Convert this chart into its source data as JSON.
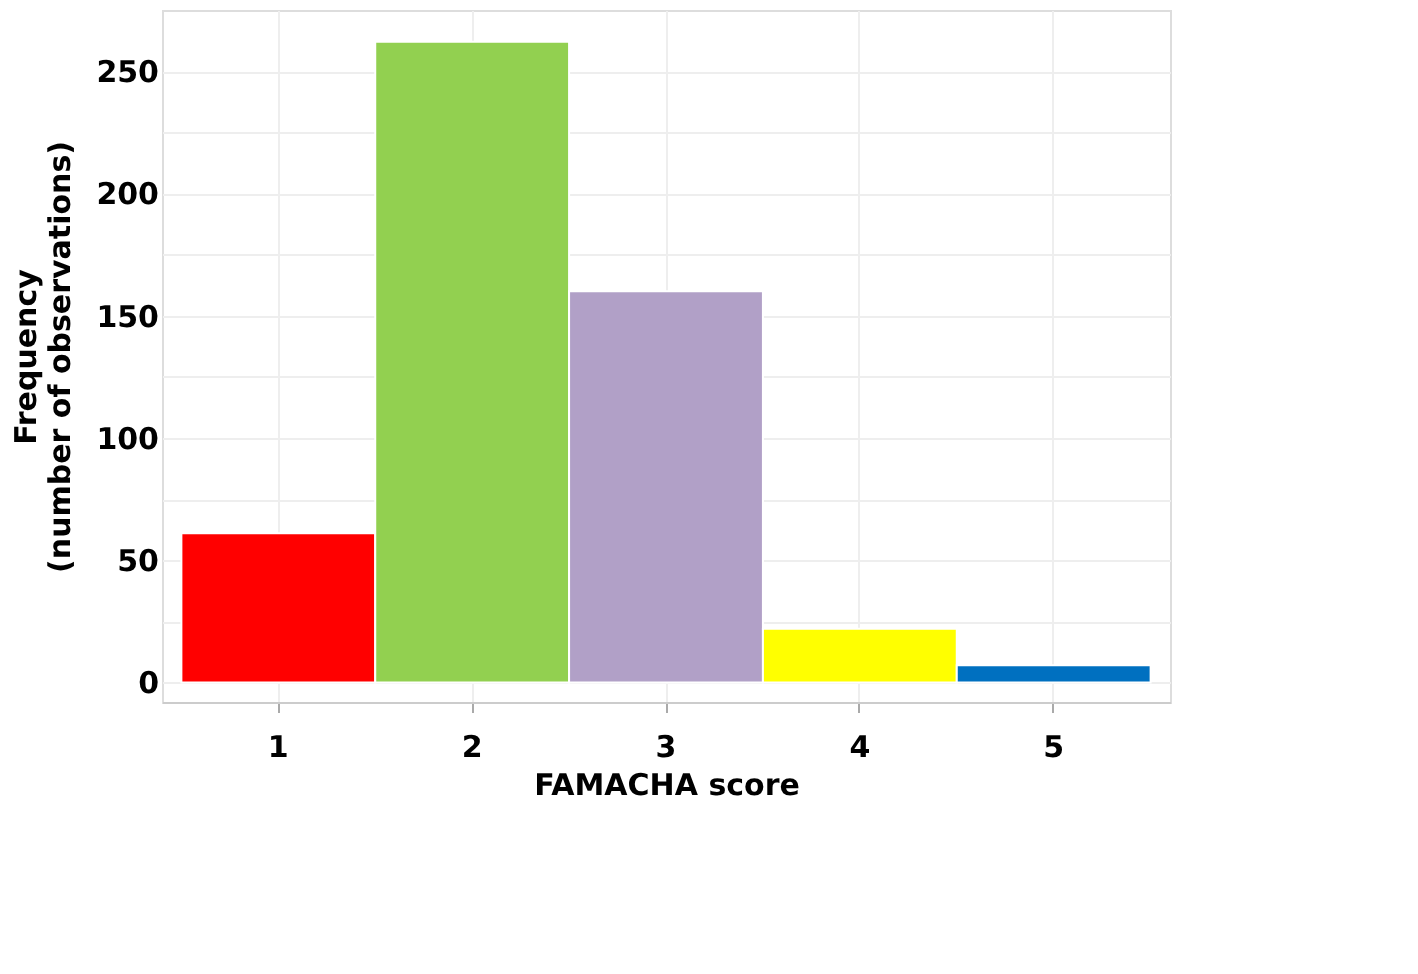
{
  "chart_data": {
    "type": "bar",
    "categories": [
      "1",
      "2",
      "3",
      "4",
      "5"
    ],
    "values": [
      61,
      262,
      160,
      22,
      7
    ],
    "colors": [
      "#ff0000",
      "#92d050",
      "#b1a0c7",
      "#ffff00",
      "#0070c0"
    ],
    "xlabel": "FAMACHA score",
    "ylabel": "Frequency\n(number of observations)",
    "ylim": [
      -8,
      275
    ],
    "yticks": [
      0,
      {
        "value": 25,
        "label": null
      },
      50,
      {
        "value": 75,
        "label": null
      },
      100,
      {
        "value": 125,
        "label": null
      },
      150,
      {
        "value": 175,
        "label": null
      },
      200,
      {
        "value": 225,
        "label": null
      },
      250
    ],
    "grid": true
  }
}
